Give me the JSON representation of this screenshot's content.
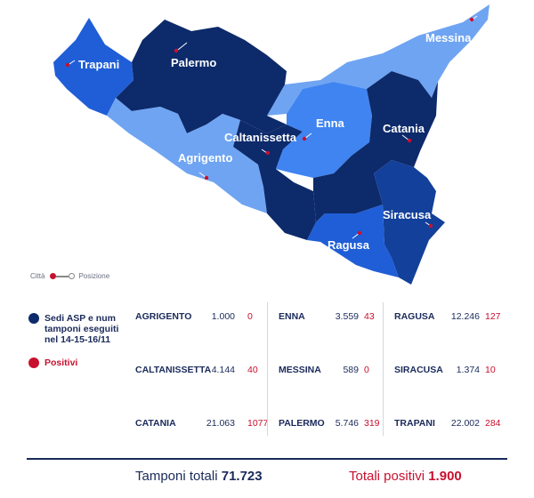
{
  "map": {
    "cities": [
      "Trapani",
      "Palermo",
      "Messina",
      "Enna",
      "Caltanissetta",
      "Catania",
      "Agrigento",
      "Siracusa",
      "Ragusa"
    ],
    "colors": {
      "dark": "#0d2a6b",
      "medium": "#1f5ed6",
      "light": "#3f84f0",
      "pale": "#6fa4f2",
      "positive": "#c8102e"
    }
  },
  "legend": {
    "city": "Città",
    "position": "Posizione"
  },
  "key": {
    "asp": "Sedi ASP e num tamponi eseguiti nel 14-15-16/11",
    "positives": "Positivi"
  },
  "table": [
    {
      "name": "AGRIGENTO",
      "tamponi": "1.000",
      "positivi": "0"
    },
    {
      "name": "ENNA",
      "tamponi": "3.559",
      "positivi": "43"
    },
    {
      "name": "RAGUSA",
      "tamponi": "12.246",
      "positivi": "127"
    },
    {
      "name": "CALTANISSETTA",
      "tamponi": "4.144",
      "positivi": "40"
    },
    {
      "name": "MESSINA",
      "tamponi": "589",
      "positivi": "0"
    },
    {
      "name": "SIRACUSA",
      "tamponi": "1.374",
      "positivi": "10"
    },
    {
      "name": "CATANIA",
      "tamponi": "21.063",
      "positivi": "1077"
    },
    {
      "name": "PALERMO",
      "tamponi": "5.746",
      "positivi": "319"
    },
    {
      "name": "TRAPANI",
      "tamponi": "22.002",
      "positivi": "284"
    }
  ],
  "totals": {
    "tamponi_label": "Tamponi totali",
    "tamponi_value": "71.723",
    "positivi_label": "Totali positivi",
    "positivi_value": "1.900"
  }
}
